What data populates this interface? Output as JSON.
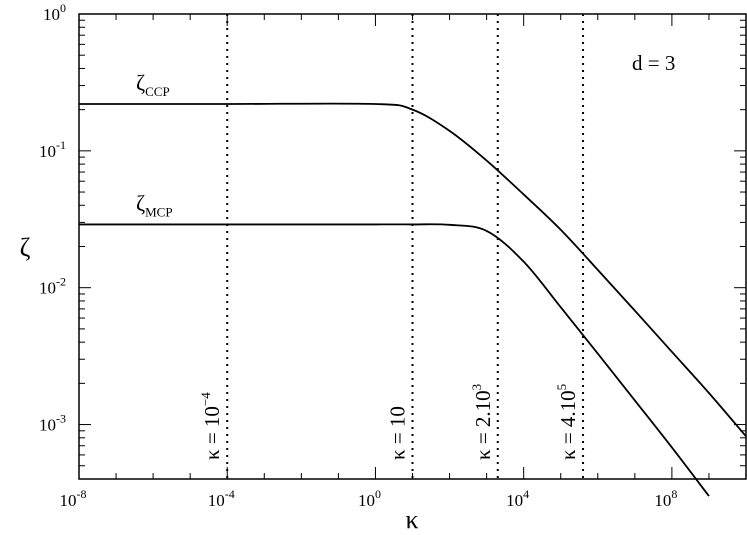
{
  "chart_data": {
    "type": "line",
    "title": "",
    "xlabel": "κ",
    "ylabel": "ζ",
    "xscale": "log",
    "yscale": "log",
    "xlim": [
      1e-08,
      10000000000.0
    ],
    "ylim": [
      0.0004,
      1
    ],
    "x_ticks": [
      {
        "base": "10",
        "exp": "-8"
      },
      {
        "base": "10",
        "exp": "-4"
      },
      {
        "base": "10",
        "exp": "0"
      },
      {
        "base": "10",
        "exp": "4"
      },
      {
        "base": "10",
        "exp": "8"
      }
    ],
    "x_tick_values": [
      1e-08,
      0.0001,
      1,
      10000.0,
      100000000.0
    ],
    "y_ticks": [
      {
        "base": "10",
        "exp": "0"
      },
      {
        "base": "10",
        "exp": "-1"
      },
      {
        "base": "10",
        "exp": "-2"
      },
      {
        "base": "10",
        "exp": "-3"
      }
    ],
    "y_tick_values": [
      1,
      0.1,
      0.01,
      0.001
    ],
    "annotation": "d = 3",
    "grid": false,
    "series": [
      {
        "name": "ζ",
        "subscript": "CCP",
        "x": [
          1e-08,
          0.0001,
          1,
          10,
          100,
          1000,
          10000,
          100000,
          1000000,
          10000000,
          100000000,
          1000000000,
          10000000000
        ],
        "y": [
          0.22,
          0.22,
          0.22,
          0.2,
          0.14,
          0.085,
          0.048,
          0.0265,
          0.0135,
          0.0068,
          0.0034,
          0.0017,
          0.00082
        ]
      },
      {
        "name": "ζ",
        "subscript": "MCP",
        "x": [
          1e-08,
          0.0001,
          1,
          10,
          100,
          1000,
          10000,
          100000,
          1000000,
          10000000,
          100000000,
          1000000000
        ],
        "y": [
          0.029,
          0.029,
          0.029,
          0.029,
          0.0288,
          0.026,
          0.0155,
          0.0072,
          0.0033,
          0.0015,
          0.00068,
          0.0003
        ]
      }
    ],
    "vlines": [
      {
        "x": 0.0001,
        "label": "κ = 10",
        "exp": "−4"
      },
      {
        "x": 10,
        "label": "κ = 10",
        "exp": ""
      },
      {
        "x": 2000,
        "label": "κ = 2.10",
        "exp": "3"
      },
      {
        "x": 400000,
        "label": "κ = 4.10",
        "exp": "5"
      }
    ]
  }
}
